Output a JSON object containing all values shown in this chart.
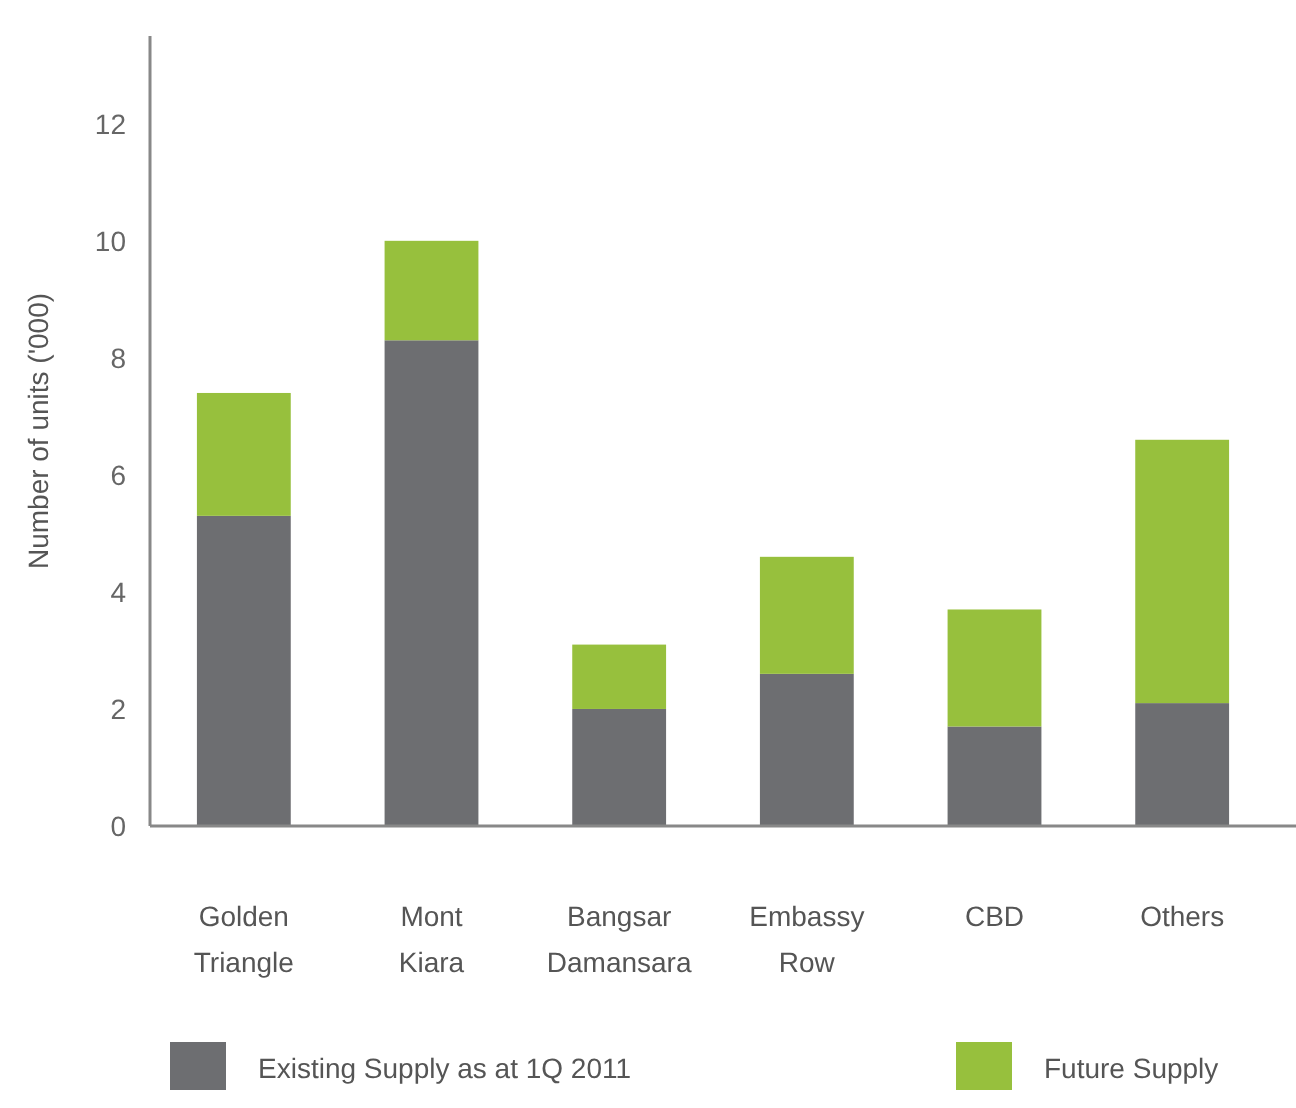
{
  "chart_data": {
    "type": "bar",
    "stacked": true,
    "ylabel": "Number of units ('000)",
    "categories": [
      "Golden Triangle",
      "Mont Kiara",
      "Bangsar Damansara",
      "Embassy Row",
      "CBD",
      "Others"
    ],
    "series": [
      {
        "name": "Existing Supply as at 1Q 2011",
        "color": "#6d6e71",
        "values": [
          5.3,
          8.3,
          2.0,
          2.6,
          1.7,
          2.1
        ]
      },
      {
        "name": "Future Supply",
        "color": "#97c03d",
        "values": [
          2.1,
          1.7,
          1.1,
          2.0,
          2.0,
          4.5
        ]
      }
    ],
    "ylim": [
      0,
      13.5
    ],
    "yticks": [
      0,
      2,
      4,
      6,
      8,
      10,
      12
    ],
    "grid": false,
    "legend": "bottom"
  }
}
